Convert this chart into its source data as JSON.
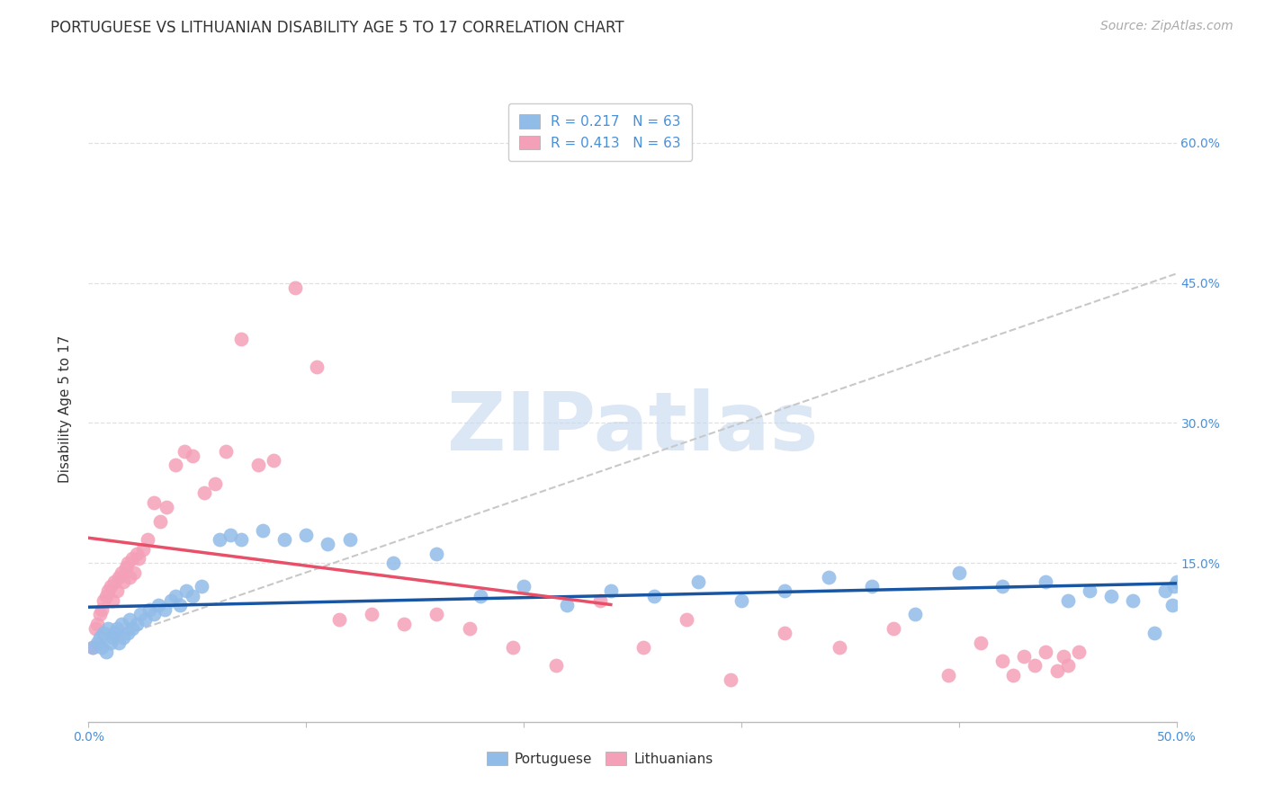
{
  "title": "PORTUGUESE VS LITHUANIAN DISABILITY AGE 5 TO 17 CORRELATION CHART",
  "source": "Source: ZipAtlas.com",
  "ylabel": "Disability Age 5 to 17",
  "xlim": [
    0.0,
    0.5
  ],
  "ylim": [
    -0.02,
    0.65
  ],
  "xticks": [
    0.0,
    0.1,
    0.2,
    0.3,
    0.4,
    0.5
  ],
  "xticklabels": [
    "0.0%",
    "",
    "",
    "",
    "",
    "50.0%"
  ],
  "yticks_right": [
    0.0,
    0.15,
    0.3,
    0.45,
    0.6
  ],
  "ytick_right_labels": [
    "",
    "15.0%",
    "30.0%",
    "45.0%",
    "60.0%"
  ],
  "portuguese_color": "#92bce8",
  "lithuanian_color": "#f4a0b8",
  "portuguese_line_color": "#1855a3",
  "lithuanian_line_color": "#e8506a",
  "trendline_dash_color": "#c8c8c8",
  "background_color": "#ffffff",
  "grid_color": "#e0e0e0",
  "title_fontsize": 12,
  "axis_label_fontsize": 11,
  "tick_fontsize": 10,
  "legend_fontsize": 11,
  "source_fontsize": 10,
  "watermark_text": "ZIPatlas",
  "watermark_color": "#c5d8f0",
  "watermark_fontsize": 65,
  "portuguese_x": [
    0.002,
    0.004,
    0.005,
    0.006,
    0.007,
    0.008,
    0.009,
    0.01,
    0.011,
    0.012,
    0.013,
    0.014,
    0.015,
    0.016,
    0.018,
    0.019,
    0.02,
    0.022,
    0.024,
    0.026,
    0.028,
    0.03,
    0.032,
    0.035,
    0.038,
    0.04,
    0.042,
    0.045,
    0.048,
    0.052,
    0.06,
    0.065,
    0.07,
    0.08,
    0.09,
    0.1,
    0.11,
    0.12,
    0.14,
    0.16,
    0.18,
    0.2,
    0.22,
    0.24,
    0.26,
    0.28,
    0.3,
    0.32,
    0.34,
    0.36,
    0.38,
    0.4,
    0.42,
    0.44,
    0.45,
    0.46,
    0.47,
    0.48,
    0.49,
    0.495,
    0.498,
    0.499,
    0.5
  ],
  "portuguese_y": [
    0.06,
    0.065,
    0.07,
    0.06,
    0.075,
    0.055,
    0.08,
    0.065,
    0.07,
    0.075,
    0.08,
    0.065,
    0.085,
    0.07,
    0.075,
    0.09,
    0.08,
    0.085,
    0.095,
    0.09,
    0.1,
    0.095,
    0.105,
    0.1,
    0.11,
    0.115,
    0.105,
    0.12,
    0.115,
    0.125,
    0.175,
    0.18,
    0.175,
    0.185,
    0.175,
    0.18,
    0.17,
    0.175,
    0.15,
    0.16,
    0.115,
    0.125,
    0.105,
    0.12,
    0.115,
    0.13,
    0.11,
    0.12,
    0.135,
    0.125,
    0.095,
    0.14,
    0.125,
    0.13,
    0.11,
    0.12,
    0.115,
    0.11,
    0.075,
    0.12,
    0.105,
    0.125,
    0.13
  ],
  "lithuanian_x": [
    0.002,
    0.003,
    0.004,
    0.005,
    0.006,
    0.007,
    0.008,
    0.009,
    0.01,
    0.011,
    0.012,
    0.013,
    0.014,
    0.015,
    0.016,
    0.017,
    0.018,
    0.019,
    0.02,
    0.021,
    0.022,
    0.023,
    0.025,
    0.027,
    0.03,
    0.033,
    0.036,
    0.04,
    0.044,
    0.048,
    0.053,
    0.058,
    0.063,
    0.07,
    0.078,
    0.085,
    0.095,
    0.105,
    0.115,
    0.13,
    0.145,
    0.16,
    0.175,
    0.195,
    0.215,
    0.235,
    0.255,
    0.275,
    0.295,
    0.32,
    0.345,
    0.37,
    0.395,
    0.41,
    0.42,
    0.425,
    0.43,
    0.435,
    0.44,
    0.445,
    0.448,
    0.45,
    0.455
  ],
  "lithuanian_y": [
    0.06,
    0.08,
    0.085,
    0.095,
    0.1,
    0.11,
    0.115,
    0.12,
    0.125,
    0.11,
    0.13,
    0.12,
    0.135,
    0.14,
    0.13,
    0.145,
    0.15,
    0.135,
    0.155,
    0.14,
    0.16,
    0.155,
    0.165,
    0.175,
    0.215,
    0.195,
    0.21,
    0.255,
    0.27,
    0.265,
    0.225,
    0.235,
    0.27,
    0.39,
    0.255,
    0.26,
    0.445,
    0.36,
    0.09,
    0.095,
    0.085,
    0.095,
    0.08,
    0.06,
    0.04,
    0.11,
    0.06,
    0.09,
    0.025,
    0.075,
    0.06,
    0.08,
    0.03,
    0.065,
    0.045,
    0.03,
    0.05,
    0.04,
    0.055,
    0.035,
    0.05,
    0.04,
    0.055
  ]
}
